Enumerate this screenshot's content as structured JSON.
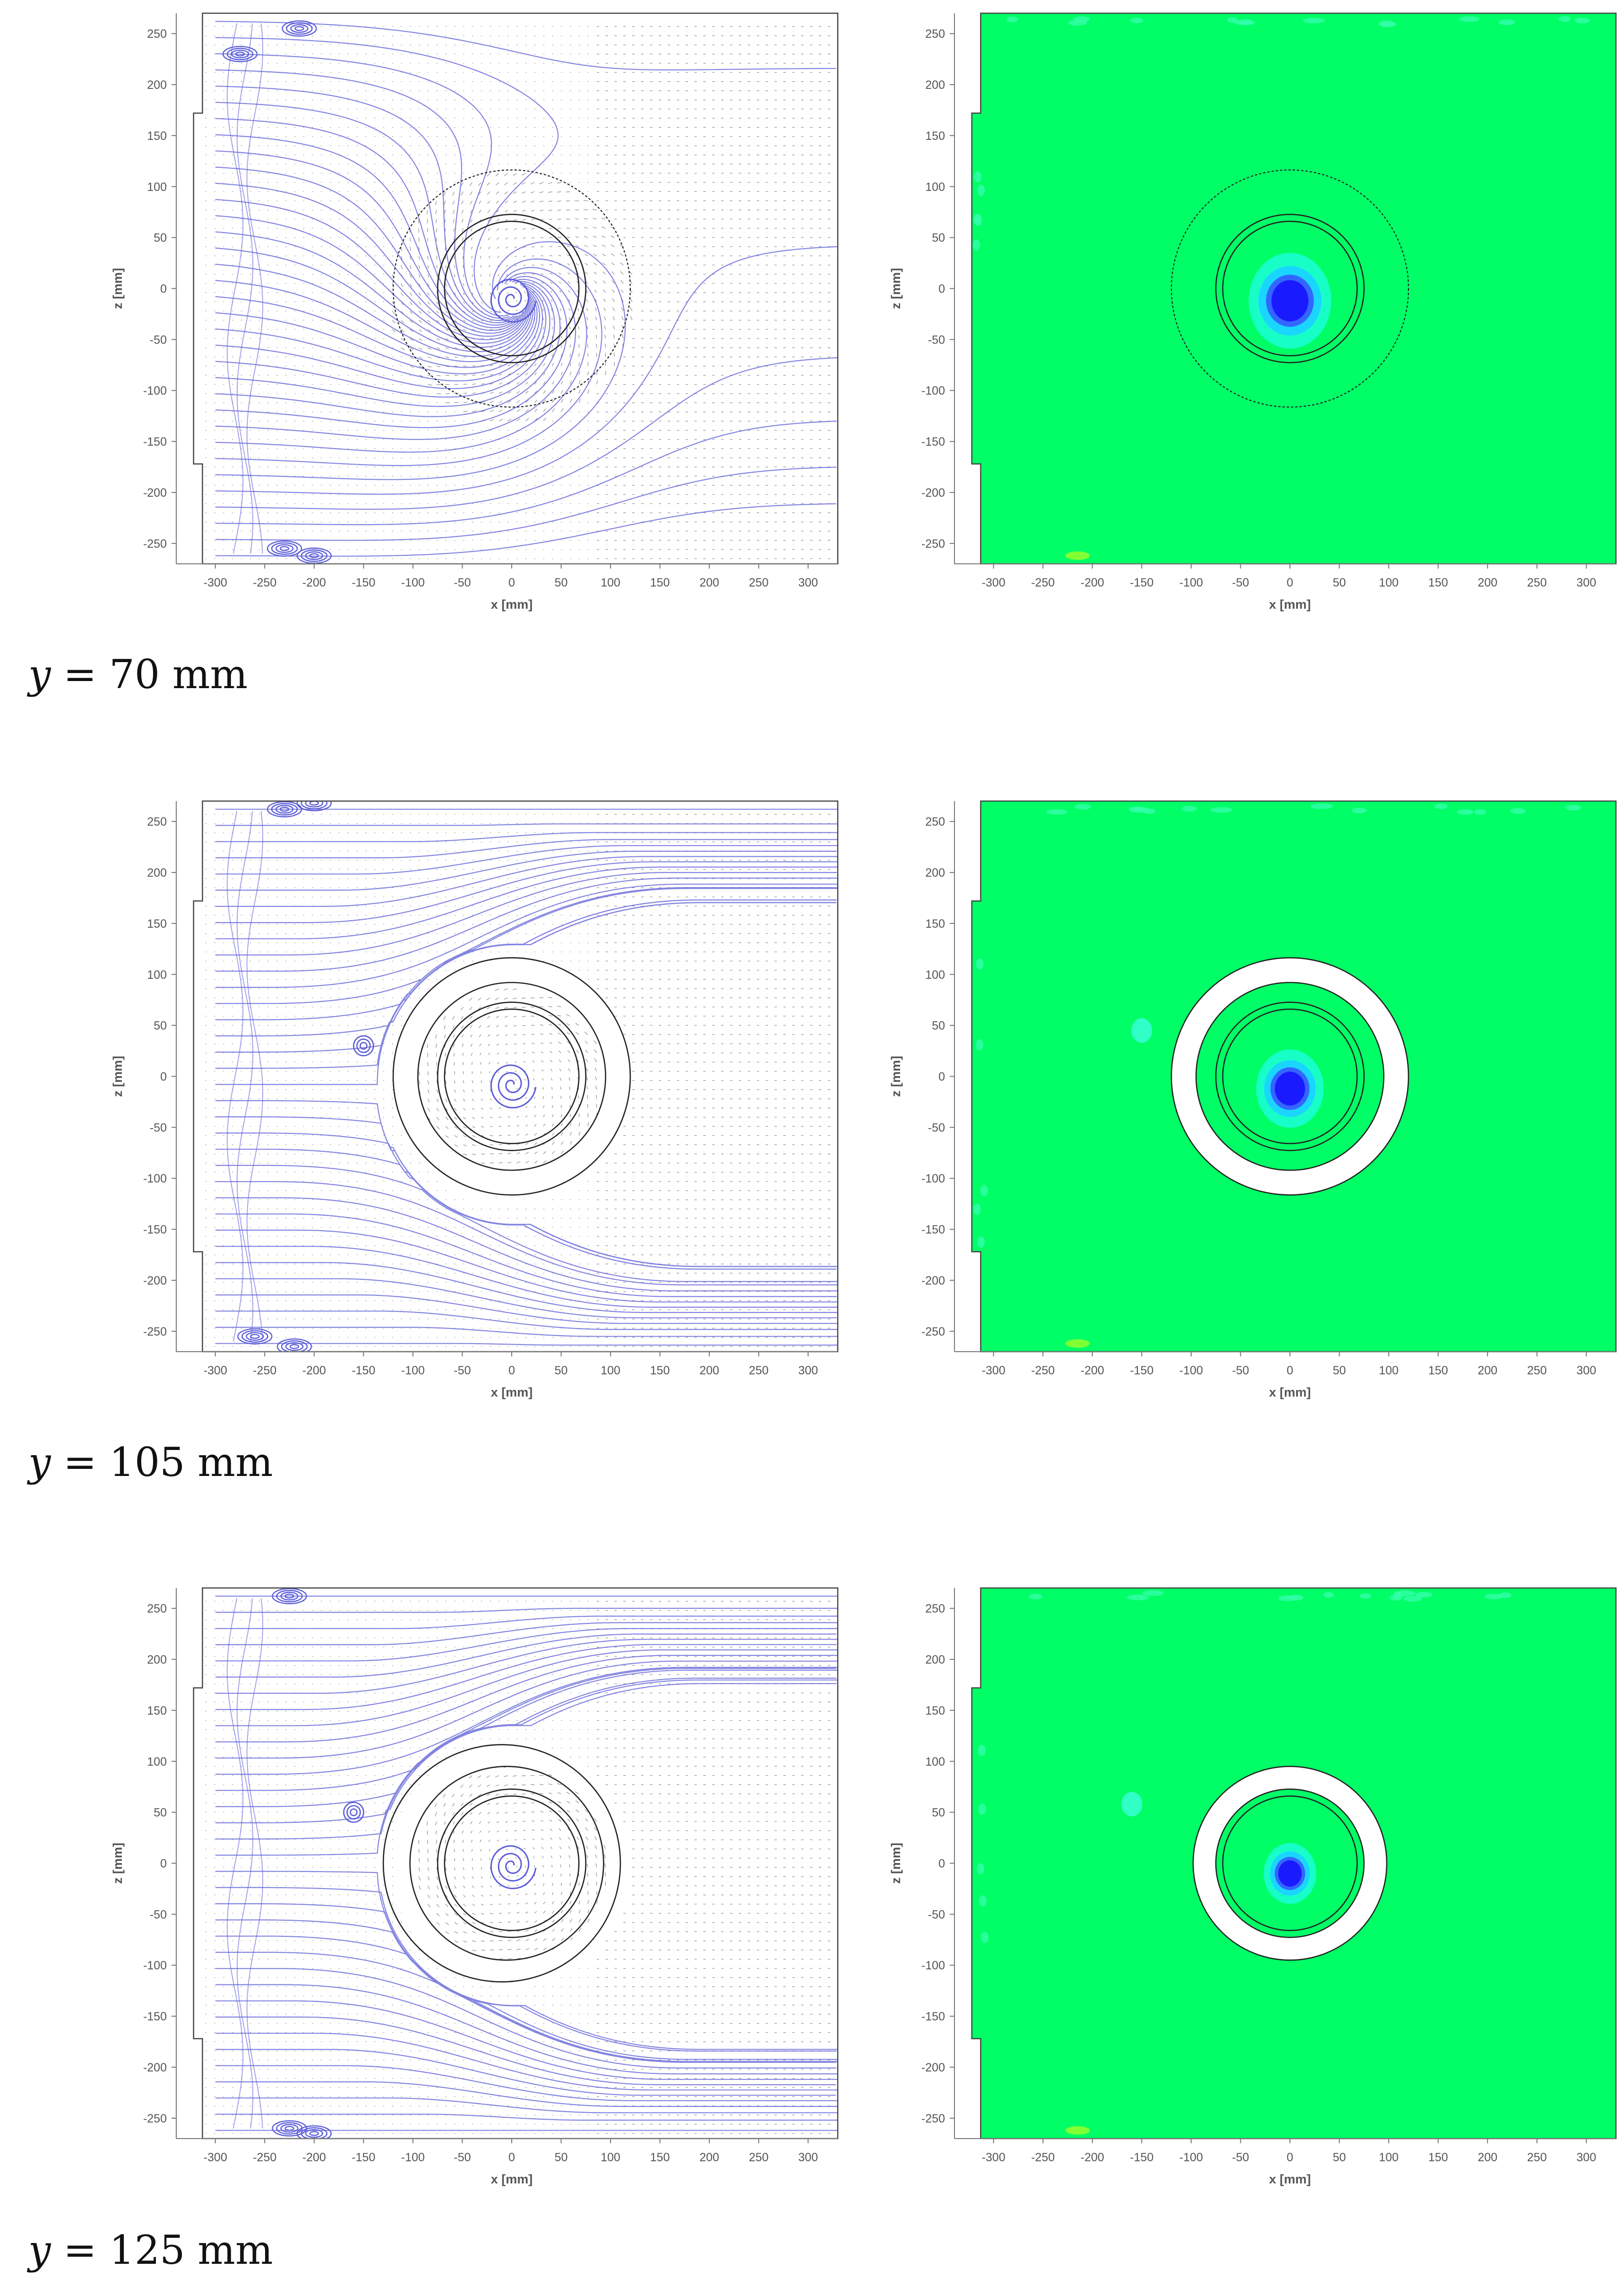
{
  "chart_data": [
    {
      "type": "streamline",
      "row": 0,
      "col": 0,
      "xlabel": "x [mm]",
      "ylabel": "z [mm]",
      "xlim": [
        -330,
        330
      ],
      "ylim": [
        -270,
        270
      ],
      "xticks": [
        -300,
        -250,
        -200,
        -150,
        -100,
        -50,
        0,
        50,
        100,
        150,
        200,
        250,
        300
      ],
      "yticks": [
        250,
        200,
        150,
        100,
        50,
        0,
        -50,
        -100,
        -150,
        -200,
        -250
      ],
      "rings": [
        {
          "r": 120,
          "style": "dashed"
        },
        {
          "r": 75
        },
        {
          "r": 68
        }
      ],
      "band": null,
      "vortex_center": [
        0,
        -10
      ],
      "swirl": 0.85,
      "separation": null,
      "corner_eddies": [
        [
          -215,
          255
        ],
        [
          -275,
          230
        ],
        [
          -230,
          -255
        ],
        [
          -200,
          -262
        ]
      ]
    },
    {
      "type": "contour",
      "row": 0,
      "col": 1,
      "xlabel": "x [mm]",
      "ylabel": "z [mm]",
      "xlim": [
        -330,
        330
      ],
      "ylim": [
        -270,
        270
      ],
      "xticks": [
        -300,
        -250,
        -200,
        -150,
        -100,
        -50,
        0,
        50,
        100,
        150,
        200,
        250,
        300
      ],
      "yticks": [
        250,
        200,
        150,
        100,
        50,
        0,
        -50,
        -100,
        -150,
        -200,
        -250
      ],
      "rings": [
        {
          "r": 120,
          "style": "dashed"
        },
        {
          "r": 75
        },
        {
          "r": 68
        }
      ],
      "band": null,
      "core": [
        0,
        -12
      ],
      "core_radius": 22,
      "blobs": [
        [
          -215,
          -262
        ]
      ]
    },
    {
      "type": "streamline",
      "row": 1,
      "col": 0,
      "xlabel": "x [mm]",
      "ylabel": "z [mm]",
      "xlim": [
        -330,
        330
      ],
      "ylim": [
        -270,
        270
      ],
      "xticks": [
        -300,
        -250,
        -200,
        -150,
        -100,
        -50,
        0,
        50,
        100,
        150,
        200,
        250,
        300
      ],
      "yticks": [
        250,
        200,
        150,
        100,
        50,
        0,
        -50,
        -100,
        -150,
        -200,
        -250
      ],
      "rings": [
        {
          "r": 120
        },
        {
          "r": 95
        },
        {
          "r": 75
        },
        {
          "r": 68
        }
      ],
      "band": [
        95,
        120
      ],
      "vortex_center": [
        0,
        -8
      ],
      "swirl": 0.4,
      "separation": [
        -150,
        30
      ],
      "corner_eddies": [
        [
          -230,
          262
        ],
        [
          -200,
          268
        ],
        [
          -260,
          -255
        ],
        [
          -220,
          -265
        ]
      ]
    },
    {
      "type": "contour",
      "row": 1,
      "col": 1,
      "xlabel": "x [mm]",
      "ylabel": "z [mm]",
      "xlim": [
        -330,
        330
      ],
      "ylim": [
        -270,
        270
      ],
      "xticks": [
        -300,
        -250,
        -200,
        -150,
        -100,
        -50,
        0,
        50,
        100,
        150,
        200,
        250,
        300
      ],
      "yticks": [
        250,
        200,
        150,
        100,
        50,
        0,
        -50,
        -100,
        -150,
        -200,
        -250
      ],
      "rings": [
        {
          "r": 120
        },
        {
          "r": 95
        },
        {
          "r": 75
        },
        {
          "r": 68
        }
      ],
      "band": [
        95,
        120
      ],
      "core": [
        0,
        -12
      ],
      "core_radius": 18,
      "blobs": [
        [
          -150,
          45
        ],
        [
          -215,
          -262
        ]
      ]
    },
    {
      "type": "streamline",
      "row": 2,
      "col": 0,
      "xlabel": "x [mm]",
      "ylabel": "z [mm]",
      "xlim": [
        -330,
        330
      ],
      "ylim": [
        -270,
        270
      ],
      "xticks": [
        -300,
        -250,
        -200,
        -150,
        -100,
        -50,
        0,
        50,
        100,
        150,
        200,
        250,
        300
      ],
      "yticks": [
        250,
        200,
        150,
        100,
        50,
        0,
        -50,
        -100,
        -150,
        -200,
        -250
      ],
      "rings": [
        {
          "r": 120,
          "cx": -10
        },
        {
          "r": 98,
          "cx": -5
        },
        {
          "r": 75
        },
        {
          "r": 68
        }
      ],
      "band": [
        98,
        120
      ],
      "vortex_center": [
        0,
        -2
      ],
      "swirl": 0.3,
      "separation": [
        -160,
        50
      ],
      "corner_eddies": [
        [
          -225,
          262
        ],
        [
          -225,
          -260
        ],
        [
          -200,
          -265
        ]
      ]
    },
    {
      "type": "contour",
      "row": 2,
      "col": 1,
      "xlabel": "x [mm]",
      "ylabel": "z [mm]",
      "xlim": [
        -330,
        330
      ],
      "ylim": [
        -270,
        270
      ],
      "xticks": [
        -300,
        -250,
        -200,
        -150,
        -100,
        -50,
        0,
        50,
        100,
        150,
        200,
        250,
        300
      ],
      "yticks": [
        250,
        200,
        150,
        100,
        50,
        0,
        -50,
        -100,
        -150,
        -200,
        -250
      ],
      "rings": [
        {
          "r": 98
        },
        {
          "r": 75
        },
        {
          "r": 68
        }
      ],
      "band": [
        75,
        98
      ],
      "core": [
        0,
        -10
      ],
      "core_radius": 14,
      "blobs": [
        [
          -160,
          58
        ],
        [
          -215,
          -262
        ]
      ]
    }
  ],
  "captions": [
    {
      "var": "y",
      "text": " = 70 mm"
    },
    {
      "var": "y",
      "text": " = 105 mm"
    },
    {
      "var": "y",
      "text": " = 125 mm"
    }
  ],
  "colors": {
    "streamline": "#5a5cd8",
    "vector": "#2a2a2a",
    "contour_field": "#00ff66",
    "contour_core": "#1a1aff",
    "contour_mid": "#1ad6ff",
    "ring": "#222222",
    "axis": "#777777"
  }
}
